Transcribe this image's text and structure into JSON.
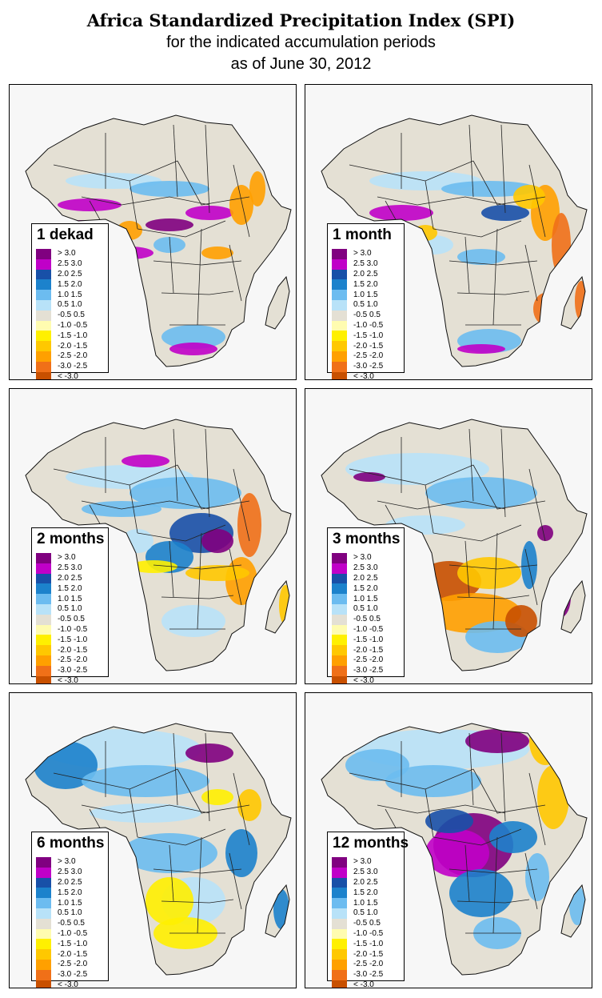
{
  "header": {
    "title": "Africa Standardized Precipitation Index (SPI)",
    "subtitle1": "for the indicated accumulation periods",
    "subtitle2": "as of June 30, 2012"
  },
  "legend_classes": [
    {
      "label": "> 3.0",
      "color": "#800080"
    },
    {
      "label": "2.5  3.0",
      "color": "#c000c8"
    },
    {
      "label": "2.0  2.5",
      "color": "#1850a8"
    },
    {
      "label": "1.5  2.0",
      "color": "#1c82cc"
    },
    {
      "label": "1.0  1.5",
      "color": "#6cbcf0"
    },
    {
      "label": "0.5  1.0",
      "color": "#b8e2f8"
    },
    {
      "label": "-0.5  0.5",
      "color": "#e4e0d4"
    },
    {
      "label": "-1.0 -0.5",
      "color": "#fffcb0"
    },
    {
      "label": "-1.5 -1.0",
      "color": "#fff000"
    },
    {
      "label": "-2.0 -1.5",
      "color": "#ffc800"
    },
    {
      "label": "-2.5 -2.0",
      "color": "#ffa000"
    },
    {
      "label": "-3.0 -2.5",
      "color": "#f07018"
    },
    {
      "label": "< -3.0",
      "color": "#c85000"
    }
  ],
  "panels": [
    {
      "label": "1 dekad",
      "index": [
        0,
        0,
        0,
        0,
        0,
        0,
        0,
        0,
        0,
        0
      ]
    },
    {
      "label": "1 month",
      "index": [
        1,
        1,
        1,
        1,
        1,
        1,
        1,
        1,
        1,
        1
      ]
    },
    {
      "label": "2 months",
      "index": [
        2,
        2,
        2,
        2,
        2,
        2,
        2,
        2,
        2,
        2
      ]
    },
    {
      "label": "3 months",
      "index": [
        3,
        3,
        3,
        3,
        3,
        3,
        3,
        3,
        3,
        3
      ]
    },
    {
      "label": "6 months",
      "index": [
        4,
        4,
        4,
        4,
        4,
        4,
        4,
        4,
        4,
        4
      ]
    },
    {
      "label": "12 months",
      "index": [
        5,
        5,
        5,
        5,
        5,
        5,
        5,
        5,
        5,
        5
      ]
    }
  ]
}
